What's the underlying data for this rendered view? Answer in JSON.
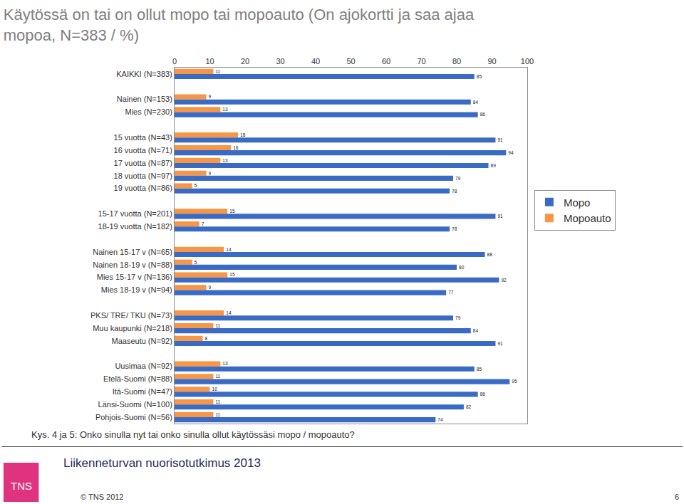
{
  "chart_data": {
    "type": "bar",
    "orientation": "horizontal",
    "title": "Käytössä on tai on ollut mopo tai mopoauto (On ajokortti ja saa ajaa\nmopoa, N=383 / %)",
    "categories": [
      "KAIKKI (N=383)",
      null,
      "Nainen (N=153)",
      "Mies (N=230)",
      null,
      "15 vuotta (N=43)",
      "16 vuotta (N=71)",
      "17 vuotta (N=87)",
      "18 vuotta (N=97)",
      "19 vuotta (N=86)",
      null,
      "15-17 vuotta (N=201)",
      "18-19 vuotta (N=182)",
      null,
      "Nainen 15-17 v (N=65)",
      "Nainen 18-19 v (N=88)",
      "Mies 15-17 v (N=136)",
      "Mies 18-19 v (N=94)",
      null,
      "PKS/ TRE/ TKU (N=73)",
      "Muu kaupunki (N=218)",
      "Maaseutu (N=92)",
      null,
      "Uusimaa (N=92)",
      "Etelä-Suomi (N=88)",
      "Itä-Suomi (N=47)",
      "Länsi-Suomi (N=100)",
      "Pohjois-Suomi (N=56)"
    ],
    "series": [
      {
        "name": "Mopo",
        "color": "#3a6bc4",
        "values": [
          85,
          null,
          84,
          86,
          null,
          91,
          94,
          89,
          79,
          78,
          null,
          91,
          78,
          null,
          88,
          80,
          92,
          77,
          null,
          79,
          84,
          91,
          null,
          85,
          95,
          86,
          82,
          74
        ]
      },
      {
        "name": "Mopoauto",
        "color": "#f79646",
        "values": [
          11,
          null,
          9,
          13,
          null,
          18,
          16,
          13,
          9,
          5,
          null,
          15,
          7,
          null,
          14,
          5,
          15,
          9,
          null,
          14,
          11,
          8,
          null,
          13,
          11,
          10,
          11,
          11
        ]
      }
    ],
    "xlim": [
      0,
      100
    ],
    "xticks": [
      0,
      10,
      20,
      30,
      40,
      50,
      60,
      70,
      80,
      90,
      100
    ],
    "grid": false,
    "legend": "right",
    "data_labels": true,
    "annotations": [
      "Kys. 4 ja 5: Onko sinulla nyt tai onko sinulla ollut käytössäsi mopo / mopoauto?",
      "Liikenneturvan nuorisotutkimus 2013",
      "© TNS 2012",
      "6",
      "TNS"
    ]
  }
}
